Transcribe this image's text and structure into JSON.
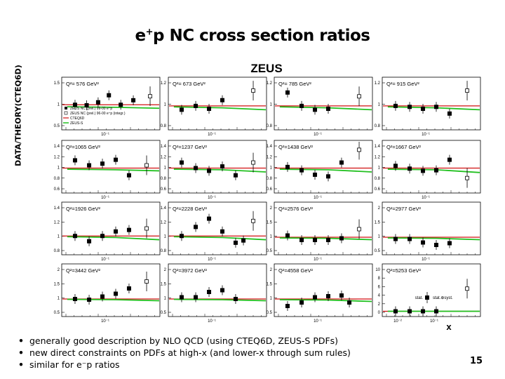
{
  "slide": {
    "title_main": "e",
    "title_sup": "+",
    "title_rest": "p NC cross section ratios",
    "page_number": "15",
    "bullets": [
      "generally good description by NLO QCD (using CTEQ6D, ZEUS-S PDFs)",
      "new direct constraints on PDFs at high-x (and lower-x through sum rules)",
      "similar for e⁻p ratios"
    ]
  },
  "figure": {
    "experiment_label": "ZEUS",
    "y_axis_title": "DATA/THEORY(CTEQ6D)",
    "x_axis_title": "x",
    "colors": {
      "data": "#000000",
      "cteq6d": "#d01010",
      "zeus_s": "#22c020"
    },
    "legend_first_panel": [
      "ZEUS NC (prel.) 99-00 e⁺p",
      "ZEUS NC (prel.) 96-00 e⁺p (integr.)",
      "CTEQ6D",
      "ZEUS-S"
    ],
    "error_legend": {
      "stat": "stat.",
      "syst": "stat.⊕syst."
    }
  },
  "chart_data": {
    "type": "scatter",
    "layout": "4x4 grid of panels, x log scale",
    "x_scale": "log",
    "panels": [
      {
        "label": "Q²= 576 GeV²",
        "yticks": [
          "1.5",
          "1",
          "0.5"
        ],
        "ylim": [
          0.5,
          1.55
        ],
        "xtick_labels": [
          "10⁻¹"
        ],
        "points": [
          [
            0.012,
            1.0
          ],
          [
            0.022,
            0.99
          ],
          [
            0.04,
            1.05
          ],
          [
            0.07,
            1.19
          ],
          [
            0.13,
            1.0
          ],
          [
            0.25,
            1.09
          ]
        ],
        "open_points": [
          [
            0.6,
            1.17
          ]
        ],
        "cteq6d": 1.0,
        "zeus_s": [
          [
            0.008,
            0.96
          ],
          [
            0.1,
            0.95
          ],
          [
            1.0,
            0.93
          ]
        ]
      },
      {
        "label": "Q²= 673 GeV²",
        "yticks": [
          "1.2",
          "1",
          "0.8"
        ],
        "ylim": [
          0.75,
          1.3
        ],
        "xtick_labels": [
          "10⁻¹"
        ],
        "points": [
          [
            0.012,
            0.96
          ],
          [
            0.025,
            1.0
          ],
          [
            0.05,
            0.97
          ],
          [
            0.1,
            1.06
          ]
        ],
        "open_points": [
          [
            0.5,
            1.16
          ]
        ],
        "cteq6d": 1.0,
        "zeus_s": [
          [
            0.008,
            0.99
          ],
          [
            0.1,
            0.98
          ],
          [
            1.0,
            0.96
          ]
        ]
      },
      {
        "label": "Q²= 785 GeV²",
        "yticks": [
          "1.2",
          "1",
          "0.8"
        ],
        "ylim": [
          0.75,
          1.3
        ],
        "xtick_labels": [
          "10⁻¹"
        ],
        "points": [
          [
            0.012,
            1.14
          ],
          [
            0.025,
            1.0
          ],
          [
            0.05,
            0.96
          ],
          [
            0.1,
            0.97
          ]
        ],
        "open_points": [
          [
            0.5,
            1.1
          ]
        ],
        "cteq6d": 1.0,
        "zeus_s": [
          [
            0.008,
            0.99
          ],
          [
            0.1,
            0.98
          ],
          [
            1.0,
            0.96
          ]
        ]
      },
      {
        "label": "Q²= 915 GeV²",
        "yticks": [
          "1.2",
          "1",
          "0.8"
        ],
        "ylim": [
          0.75,
          1.3
        ],
        "xtick_labels": [
          "10⁻¹"
        ],
        "points": [
          [
            0.012,
            1.0
          ],
          [
            0.025,
            0.99
          ],
          [
            0.05,
            0.97
          ],
          [
            0.1,
            0.99
          ],
          [
            0.2,
            0.92
          ]
        ],
        "open_points": [
          [
            0.5,
            1.16
          ]
        ],
        "cteq6d": 1.0,
        "zeus_s": [
          [
            0.008,
            0.99
          ],
          [
            0.1,
            0.98
          ],
          [
            1.0,
            0.96
          ]
        ]
      },
      {
        "label": "Q²=1065 GeV²",
        "yticks": [
          "1.4",
          "1.2",
          "1",
          "0.8",
          "0.6"
        ],
        "ylim": [
          0.55,
          1.5
        ],
        "xtick_labels": [
          "10⁻¹"
        ],
        "points": [
          [
            0.012,
            1.14
          ],
          [
            0.025,
            1.05
          ],
          [
            0.05,
            1.08
          ],
          [
            0.1,
            1.15
          ],
          [
            0.2,
            0.87
          ]
        ],
        "open_points": [
          [
            0.5,
            1.05
          ]
        ],
        "cteq6d": 1.0,
        "zeus_s": [
          [
            0.008,
            0.98
          ],
          [
            0.1,
            0.97
          ],
          [
            1.0,
            0.95
          ]
        ]
      },
      {
        "label": "Q²=1237 GeV²",
        "yticks": [
          "1.4",
          "1.2",
          "1",
          "0.8",
          "0.6"
        ],
        "ylim": [
          0.55,
          1.5
        ],
        "xtick_labels": [
          "10⁻¹"
        ],
        "points": [
          [
            0.012,
            1.1
          ],
          [
            0.025,
            1.0
          ],
          [
            0.05,
            0.95
          ],
          [
            0.1,
            1.03
          ],
          [
            0.2,
            0.87
          ]
        ],
        "open_points": [
          [
            0.5,
            1.1
          ]
        ],
        "cteq6d": 1.0,
        "zeus_s": [
          [
            0.008,
            0.98
          ],
          [
            0.1,
            0.97
          ],
          [
            1.0,
            0.93
          ]
        ]
      },
      {
        "label": "Q²=1438 GeV²",
        "yticks": [
          "1.4",
          "1.2",
          "1",
          "0.8",
          "0.6"
        ],
        "ylim": [
          0.55,
          1.5
        ],
        "xtick_labels": [
          "10⁻¹"
        ],
        "points": [
          [
            0.012,
            1.02
          ],
          [
            0.025,
            0.96
          ],
          [
            0.05,
            0.88
          ],
          [
            0.1,
            0.85
          ],
          [
            0.2,
            1.1
          ]
        ],
        "open_points": [
          [
            0.5,
            1.33
          ]
        ],
        "cteq6d": 1.0,
        "zeus_s": [
          [
            0.008,
            0.98
          ],
          [
            0.1,
            0.97
          ],
          [
            1.0,
            0.93
          ]
        ]
      },
      {
        "label": "Q²=1667 GeV²",
        "yticks": [
          "1.4",
          "1.2",
          "1",
          "0.8",
          "0.6"
        ],
        "ylim": [
          0.55,
          1.5
        ],
        "xtick_labels": [
          "10⁻¹"
        ],
        "points": [
          [
            0.012,
            1.04
          ],
          [
            0.025,
            0.99
          ],
          [
            0.05,
            0.95
          ],
          [
            0.1,
            0.96
          ],
          [
            0.2,
            1.15
          ]
        ],
        "open_points": [
          [
            0.5,
            0.82
          ]
        ],
        "cteq6d": 1.0,
        "zeus_s": [
          [
            0.008,
            0.98
          ],
          [
            0.1,
            0.97
          ],
          [
            1.0,
            0.92
          ]
        ]
      },
      {
        "label": "Q²=1926 GeV²",
        "yticks": [
          "1.4",
          "1.2",
          "1",
          "0.8"
        ],
        "ylim": [
          0.75,
          1.45
        ],
        "xtick_labels": [
          "10⁻¹"
        ],
        "points": [
          [
            0.012,
            1.0
          ],
          [
            0.025,
            0.93
          ],
          [
            0.05,
            1.0
          ],
          [
            0.1,
            1.06
          ],
          [
            0.2,
            1.08
          ]
        ],
        "open_points": [
          [
            0.5,
            1.1
          ]
        ],
        "cteq6d": 1.0,
        "zeus_s": [
          [
            0.008,
            0.99
          ],
          [
            0.1,
            0.98
          ],
          [
            1.0,
            0.95
          ]
        ]
      },
      {
        "label": "Q²=2228 GeV²",
        "yticks": [
          "1.4",
          "1.2",
          "1",
          "0.8"
        ],
        "ylim": [
          0.75,
          1.45
        ],
        "xtick_labels": [
          "10⁻¹"
        ],
        "points": [
          [
            0.012,
            1.0
          ],
          [
            0.025,
            1.12
          ],
          [
            0.05,
            1.23
          ],
          [
            0.1,
            1.06
          ],
          [
            0.2,
            0.91
          ],
          [
            0.3,
            0.94
          ]
        ],
        "open_points": [
          [
            0.5,
            1.2
          ]
        ],
        "cteq6d": 1.0,
        "zeus_s": [
          [
            0.008,
            0.99
          ],
          [
            0.1,
            0.98
          ],
          [
            1.0,
            0.95
          ]
        ]
      },
      {
        "label": "Q²=2576 GeV²",
        "yticks": [
          "2",
          "1.5",
          "1",
          "0.5"
        ],
        "ylim": [
          0.5,
          2.0
        ],
        "xtick_labels": [
          "10⁻¹"
        ],
        "points": [
          [
            0.012,
            1.05
          ],
          [
            0.025,
            0.92
          ],
          [
            0.05,
            0.92
          ],
          [
            0.1,
            0.92
          ],
          [
            0.2,
            0.97
          ]
        ],
        "open_points": [
          [
            0.5,
            1.23
          ]
        ],
        "cteq6d": 1.0,
        "zeus_s": [
          [
            0.008,
            0.98
          ],
          [
            0.1,
            0.97
          ],
          [
            1.0,
            0.93
          ]
        ]
      },
      {
        "label": "Q²=2977 GeV²",
        "yticks": [
          "2",
          "1.5",
          "1",
          "0.5"
        ],
        "ylim": [
          0.5,
          2.0
        ],
        "xtick_labels": [
          "10⁻¹"
        ],
        "points": [
          [
            0.012,
            0.95
          ],
          [
            0.025,
            0.95
          ],
          [
            0.05,
            0.85
          ],
          [
            0.1,
            0.78
          ],
          [
            0.2,
            0.83
          ]
        ],
        "open_points": [],
        "cteq6d": 1.0,
        "zeus_s": [
          [
            0.008,
            0.98
          ],
          [
            0.1,
            0.97
          ],
          [
            1.0,
            0.93
          ]
        ]
      },
      {
        "label": "Q²=3442 GeV²",
        "yticks": [
          "2",
          "1.5",
          "1",
          "0.5"
        ],
        "ylim": [
          0.5,
          2.0
        ],
        "xtick_labels": [
          "10⁻¹"
        ],
        "points": [
          [
            0.012,
            1.0
          ],
          [
            0.025,
            0.98
          ],
          [
            0.05,
            1.07
          ],
          [
            0.1,
            1.15
          ],
          [
            0.2,
            1.3
          ]
        ],
        "open_points": [
          [
            0.5,
            1.5
          ]
        ],
        "cteq6d": 1.0,
        "zeus_s": [
          [
            0.008,
            0.99
          ],
          [
            0.1,
            0.98
          ],
          [
            1.0,
            0.95
          ]
        ]
      },
      {
        "label": "Q²=3972 GeV²",
        "yticks": [
          "2",
          "1.5",
          "1",
          "0.5"
        ],
        "ylim": [
          0.5,
          2.0
        ],
        "xtick_labels": [
          "10⁻¹"
        ],
        "points": [
          [
            0.012,
            1.05
          ],
          [
            0.025,
            1.05
          ],
          [
            0.05,
            1.2
          ],
          [
            0.1,
            1.25
          ],
          [
            0.2,
            1.0
          ]
        ],
        "open_points": [],
        "cteq6d": 1.0,
        "zeus_s": [
          [
            0.008,
            0.99
          ],
          [
            0.1,
            0.98
          ],
          [
            1.0,
            0.95
          ]
        ]
      },
      {
        "label": "Q²=4558 GeV²",
        "yticks": [
          "2",
          "1.5",
          "1",
          "0.5"
        ],
        "ylim": [
          0.5,
          2.0
        ],
        "xtick_labels": [
          "10⁻¹"
        ],
        "points": [
          [
            0.012,
            0.8
          ],
          [
            0.025,
            0.9
          ],
          [
            0.05,
            1.05
          ],
          [
            0.1,
            1.08
          ],
          [
            0.2,
            1.1
          ],
          [
            0.3,
            0.9
          ]
        ],
        "open_points": [],
        "cteq6d": 1.0,
        "zeus_s": [
          [
            0.008,
            0.98
          ],
          [
            0.1,
            0.97
          ],
          [
            1.0,
            0.93
          ]
        ]
      },
      {
        "label": "Q²=5253 GeV²",
        "yticks": [
          "10",
          "8",
          "6",
          "4",
          "2",
          "0"
        ],
        "ylim": [
          0,
          10
        ],
        "xtick_labels": [
          "10⁻²",
          "10⁻¹"
        ],
        "points": [
          [
            0.012,
            1.0
          ],
          [
            0.025,
            1.0
          ],
          [
            0.05,
            1.0
          ],
          [
            0.1,
            1.0
          ]
        ],
        "open_points": [
          [
            0.5,
            5.3
          ]
        ],
        "cteq6d": 1.0,
        "zeus_s": [
          [
            0.008,
            1.0
          ],
          [
            0.1,
            1.0
          ],
          [
            1.0,
            1.0
          ]
        ]
      }
    ]
  }
}
